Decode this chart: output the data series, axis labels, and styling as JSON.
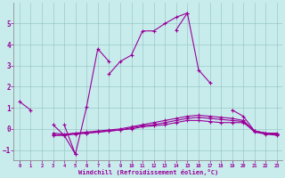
{
  "xlabel": "Windchill (Refroidissement éolien,°C)",
  "bg_color": "#c8ecec",
  "line_color": "#990099",
  "xlim": [
    -0.5,
    23.5
  ],
  "ylim": [
    -1.5,
    6.0
  ],
  "yticks": [
    -1,
    0,
    1,
    2,
    3,
    4,
    5
  ],
  "xticks": [
    0,
    1,
    2,
    3,
    4,
    5,
    6,
    7,
    8,
    9,
    10,
    11,
    12,
    13,
    14,
    15,
    16,
    17,
    18,
    19,
    20,
    21,
    22,
    23
  ],
  "lines": [
    {
      "x": [
        0,
        1,
        2,
        3,
        4,
        5,
        6,
        7,
        8,
        9,
        10,
        11,
        12,
        13,
        14,
        15,
        16,
        17,
        18,
        19,
        20,
        21,
        22,
        23
      ],
      "y": [
        1.3,
        0.9,
        null,
        null,
        0.2,
        -1.2,
        1.05,
        3.8,
        3.2,
        null,
        null,
        null,
        null,
        null,
        4.7,
        5.5,
        2.8,
        2.2,
        null,
        0.9,
        0.6,
        -0.1,
        -0.2,
        -0.2
      ]
    },
    {
      "x": [
        0,
        1,
        2,
        3,
        4,
        5,
        6,
        7,
        8,
        9,
        10,
        11,
        12,
        13,
        14,
        15,
        16,
        17,
        18,
        19,
        20,
        21,
        22,
        23
      ],
      "y": [
        null,
        null,
        null,
        0.2,
        -0.3,
        -1.2,
        null,
        null,
        2.6,
        3.2,
        3.5,
        4.65,
        4.65,
        5.0,
        5.3,
        5.5,
        null,
        null,
        null,
        null,
        null,
        null,
        null,
        null
      ]
    },
    {
      "x": [
        0,
        1,
        2,
        3,
        4,
        5,
        6,
        7,
        8,
        9,
        10,
        11,
        12,
        13,
        14,
        15,
        16,
        17,
        18,
        19,
        20,
        21,
        22,
        23
      ],
      "y": [
        null,
        null,
        null,
        -0.3,
        -0.3,
        -0.2,
        -0.2,
        -0.15,
        -0.1,
        -0.05,
        0.0,
        0.1,
        0.15,
        0.2,
        0.3,
        0.4,
        0.4,
        0.35,
        0.3,
        0.3,
        0.3,
        -0.1,
        -0.2,
        -0.25
      ]
    },
    {
      "x": [
        0,
        1,
        2,
        3,
        4,
        5,
        6,
        7,
        8,
        9,
        10,
        11,
        12,
        13,
        14,
        15,
        16,
        17,
        18,
        19,
        20,
        21,
        22,
        23
      ],
      "y": [
        null,
        null,
        null,
        -0.3,
        -0.3,
        -0.25,
        -0.2,
        -0.15,
        -0.1,
        -0.05,
        0.05,
        0.15,
        0.2,
        0.3,
        0.4,
        0.5,
        0.55,
        0.5,
        0.45,
        0.4,
        0.35,
        -0.15,
        -0.25,
        -0.3
      ]
    },
    {
      "x": [
        0,
        1,
        2,
        3,
        4,
        5,
        6,
        7,
        8,
        9,
        10,
        11,
        12,
        13,
        14,
        15,
        16,
        17,
        18,
        19,
        20,
        21,
        22,
        23
      ],
      "y": [
        null,
        null,
        null,
        -0.2,
        -0.25,
        -0.2,
        -0.15,
        -0.1,
        -0.05,
        0.0,
        0.1,
        0.2,
        0.3,
        0.4,
        0.5,
        0.6,
        0.65,
        0.6,
        0.55,
        0.5,
        0.4,
        -0.1,
        -0.2,
        -0.28
      ]
    }
  ]
}
